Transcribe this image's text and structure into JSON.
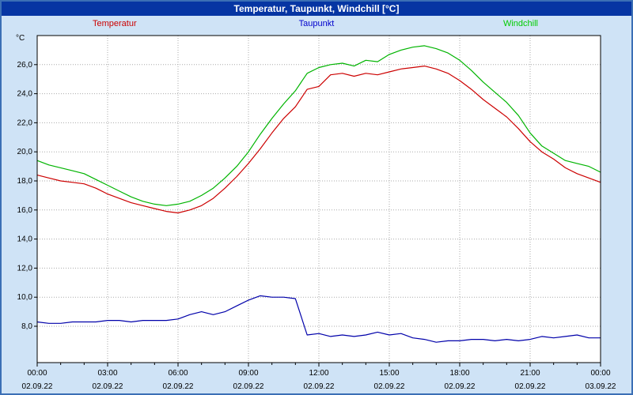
{
  "window": {
    "title": "Temperatur, Taupunkt, Windchill [°C]"
  },
  "legend": [
    {
      "label": "Temperatur",
      "color": "#cc0000"
    },
    {
      "label": "Taupunkt",
      "color": "#0000cc"
    },
    {
      "label": "Windchill",
      "color": "#00cc00"
    }
  ],
  "chart_data": {
    "type": "line",
    "title": "Temperatur, Taupunkt, Windchill [°C]",
    "ylabel": "°C",
    "ylim": [
      5.5,
      28.0
    ],
    "xlim_hours": [
      0,
      24
    ],
    "grid": true,
    "legend_position": "top",
    "colors": {
      "plot_bg": "#ffffff",
      "grid": "#aaaaaa",
      "axis": "#000000"
    },
    "y_ticks": [
      {
        "value": 8,
        "label": "8,0"
      },
      {
        "value": 10,
        "label": "10,0"
      },
      {
        "value": 12,
        "label": "12,0"
      },
      {
        "value": 14,
        "label": "14,0"
      },
      {
        "value": 16,
        "label": "16,0"
      },
      {
        "value": 18,
        "label": "18,0"
      },
      {
        "value": 20,
        "label": "20,0"
      },
      {
        "value": 22,
        "label": "22,0"
      },
      {
        "value": 24,
        "label": "24,0"
      },
      {
        "value": 26,
        "label": "26,0"
      }
    ],
    "x_ticks": [
      {
        "hour": 0,
        "time": "00:00",
        "date": "02.09.22"
      },
      {
        "hour": 3,
        "time": "03:00",
        "date": "02.09.22"
      },
      {
        "hour": 6,
        "time": "06:00",
        "date": "02.09.22"
      },
      {
        "hour": 9,
        "time": "09:00",
        "date": "02.09.22"
      },
      {
        "hour": 12,
        "time": "12:00",
        "date": "02.09.22"
      },
      {
        "hour": 15,
        "time": "15:00",
        "date": "02.09.22"
      },
      {
        "hour": 18,
        "time": "18:00",
        "date": "02.09.22"
      },
      {
        "hour": 21,
        "time": "21:00",
        "date": "02.09.22"
      },
      {
        "hour": 24,
        "time": "00:00",
        "date": "03.09.22"
      }
    ],
    "x_hours": [
      0,
      0.5,
      1,
      1.5,
      2,
      2.5,
      3,
      3.5,
      4,
      4.5,
      5,
      5.5,
      6,
      6.5,
      7,
      7.5,
      8,
      8.5,
      9,
      9.5,
      10,
      10.5,
      11,
      11.5,
      12,
      12.5,
      13,
      13.5,
      14,
      14.5,
      15,
      15.5,
      16,
      16.5,
      17,
      17.5,
      18,
      18.5,
      19,
      19.5,
      20,
      20.5,
      21,
      21.5,
      22,
      22.5,
      23,
      23.5,
      24
    ],
    "series": [
      {
        "name": "Temperatur",
        "color": "#cc0000",
        "values": [
          18.4,
          18.2,
          18.0,
          17.9,
          17.8,
          17.5,
          17.1,
          16.8,
          16.5,
          16.3,
          16.1,
          15.9,
          15.8,
          16.0,
          16.3,
          16.8,
          17.5,
          18.3,
          19.2,
          20.2,
          21.3,
          22.3,
          23.1,
          24.3,
          24.5,
          25.3,
          25.4,
          25.2,
          25.4,
          25.3,
          25.5,
          25.7,
          25.8,
          25.9,
          25.7,
          25.4,
          24.9,
          24.3,
          23.6,
          23.0,
          22.4,
          21.6,
          20.7,
          20.0,
          19.5,
          18.9,
          18.5,
          18.2,
          17.9
        ]
      },
      {
        "name": "Taupunkt",
        "color": "#0000aa",
        "values": [
          8.3,
          8.2,
          8.2,
          8.3,
          8.3,
          8.3,
          8.4,
          8.4,
          8.3,
          8.4,
          8.4,
          8.4,
          8.5,
          8.8,
          9.0,
          8.8,
          9.0,
          9.4,
          9.8,
          10.1,
          10.0,
          10.0,
          9.9,
          7.4,
          7.5,
          7.3,
          7.4,
          7.3,
          7.4,
          7.6,
          7.4,
          7.5,
          7.2,
          7.1,
          6.9,
          7.0,
          7.0,
          7.1,
          7.1,
          7.0,
          7.1,
          7.0,
          7.1,
          7.3,
          7.2,
          7.3,
          7.4,
          7.2,
          7.2
        ]
      },
      {
        "name": "Windchill",
        "color": "#00b400",
        "values": [
          19.4,
          19.1,
          18.9,
          18.7,
          18.5,
          18.1,
          17.7,
          17.3,
          16.9,
          16.6,
          16.4,
          16.3,
          16.4,
          16.6,
          17.0,
          17.5,
          18.2,
          19.0,
          20.0,
          21.2,
          22.3,
          23.3,
          24.2,
          25.4,
          25.8,
          26.0,
          26.1,
          25.9,
          26.3,
          26.2,
          26.7,
          27.0,
          27.2,
          27.3,
          27.1,
          26.8,
          26.3,
          25.6,
          24.8,
          24.1,
          23.4,
          22.5,
          21.3,
          20.4,
          19.9,
          19.4,
          19.2,
          19.0,
          18.6
        ]
      }
    ]
  }
}
